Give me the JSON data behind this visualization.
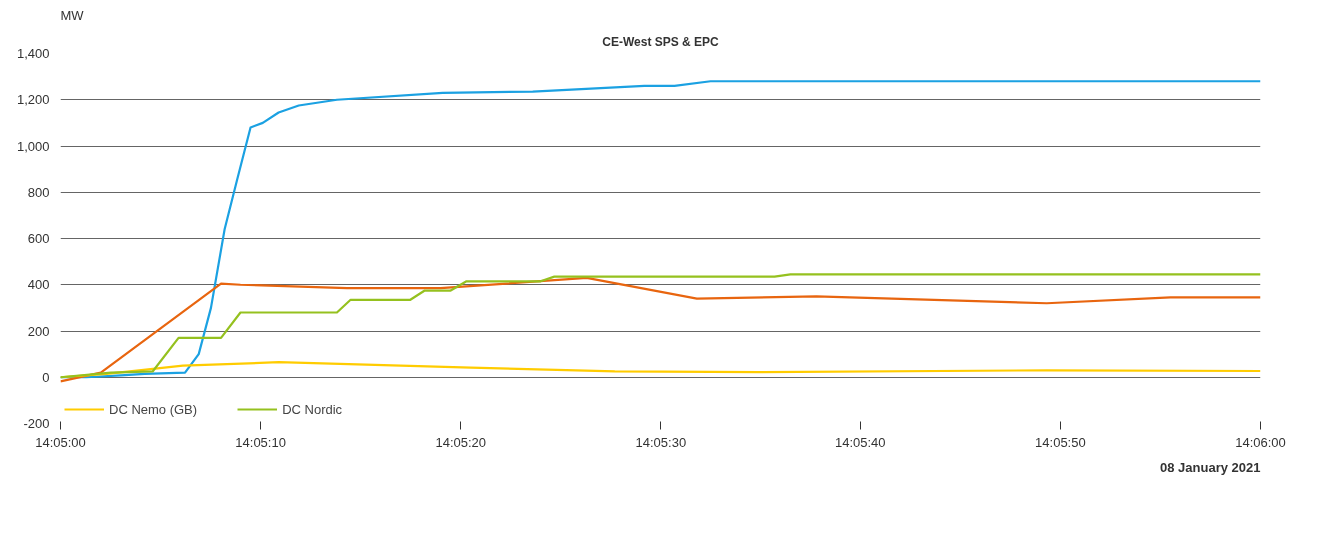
{
  "chart_data": {
    "type": "line",
    "title": "CE-West SPS & EPC",
    "ylabel": "MW",
    "xlim": [
      14.08333,
      14.1
    ],
    "xticks": [
      {
        "value": 14.08333,
        "label": "14:05:00"
      },
      {
        "value": 14.08611,
        "label": "14:05:10"
      },
      {
        "value": 14.08889,
        "label": "14:05:20"
      },
      {
        "value": 14.09167,
        "label": "14:05:30"
      },
      {
        "value": 14.09444,
        "label": "14:05:40"
      },
      {
        "value": 14.09722,
        "label": "14:05:50"
      },
      {
        "value": 14.1,
        "label": "14:06:00"
      }
    ],
    "ylim": [
      -200,
      1400
    ],
    "yticks": [
      {
        "value": -200,
        "label": "-200"
      },
      0,
      200,
      400,
      600,
      800,
      {
        "value": 1000,
        "label": "1,000"
      },
      {
        "value": 1200,
        "label": "1,200"
      },
      {
        "value": 1400,
        "label": "1,400"
      }
    ],
    "grid": "y",
    "legend": "bottom left",
    "line_style": "solid",
    "annotations": [
      "08 January 2021"
    ],
    "series": [
      {
        "color": "#1ba1e2",
        "x": [
          14.08333,
          14.08369,
          14.08417,
          14.0845,
          14.08506,
          14.08525,
          14.08542,
          14.08561,
          14.08578,
          14.08597,
          14.08614,
          14.08636,
          14.08664,
          14.08717,
          14.08864,
          14.08989,
          14.09144,
          14.09186,
          14.09236,
          14.1
        ],
        "values": [
          0,
          0,
          8,
          15,
          20,
          100,
          300,
          640,
          850,
          1080,
          1100,
          1145,
          1175,
          1200,
          1230,
          1235,
          1260,
          1260,
          1280,
          1280
        ]
      },
      {
        "color": "#e8650f",
        "x": [
          14.08333,
          14.08389,
          14.08556,
          14.08583,
          14.08731,
          14.08861,
          14.09064,
          14.09217,
          14.09383,
          14.09703,
          14.09875,
          14.1
        ],
        "values": [
          -18,
          20,
          405,
          400,
          385,
          385,
          430,
          340,
          350,
          320,
          345,
          345
        ]
      },
      {
        "name": "DC Nemo (GB)",
        "color": "#ffcc00",
        "x": [
          14.08333,
          14.08397,
          14.08503,
          14.08636,
          14.08903,
          14.09103,
          14.09303,
          14.09703,
          14.1
        ],
        "values": [
          0,
          15,
          50,
          65,
          42,
          25,
          22,
          30,
          27
        ]
      },
      {
        "name": "DC Nordic",
        "color": "#95c11f",
        "x": [
          14.08333,
          14.08403,
          14.08461,
          14.08497,
          14.08556,
          14.08583,
          14.08717,
          14.08736,
          14.08819,
          14.08839,
          14.08875,
          14.08897,
          14.09,
          14.09019,
          14.09325,
          14.09347,
          14.1
        ],
        "values": [
          0,
          20,
          25,
          170,
          170,
          280,
          280,
          335,
          335,
          375,
          375,
          415,
          415,
          435,
          435,
          445,
          445
        ]
      }
    ]
  }
}
